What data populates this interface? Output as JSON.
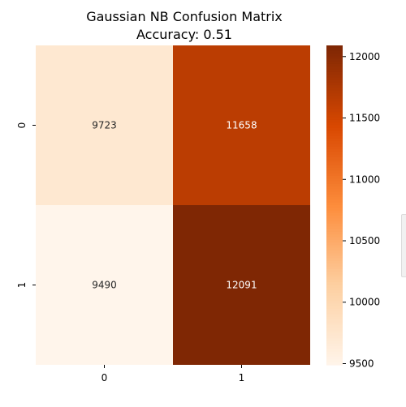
{
  "chart_data": {
    "type": "heatmap",
    "title": "Gaussian NB Confusion Matrix",
    "subtitle": "Accuracy: 0.51",
    "row_labels": [
      "0",
      "1"
    ],
    "col_labels": [
      "0",
      "1"
    ],
    "values": [
      [
        9723,
        11658
      ],
      [
        9490,
        12091
      ]
    ],
    "colormap": "Oranges",
    "colorbar": {
      "min": 9490,
      "max": 12091,
      "ticks": [
        9500,
        10000,
        10500,
        11000,
        11500,
        12000
      ]
    }
  },
  "colors": {
    "low": "#fff5eb",
    "mid_low": "#fdd0a2",
    "mid": "#fd8d3c",
    "mid_high": "#d94801",
    "high": "#7f2704"
  }
}
